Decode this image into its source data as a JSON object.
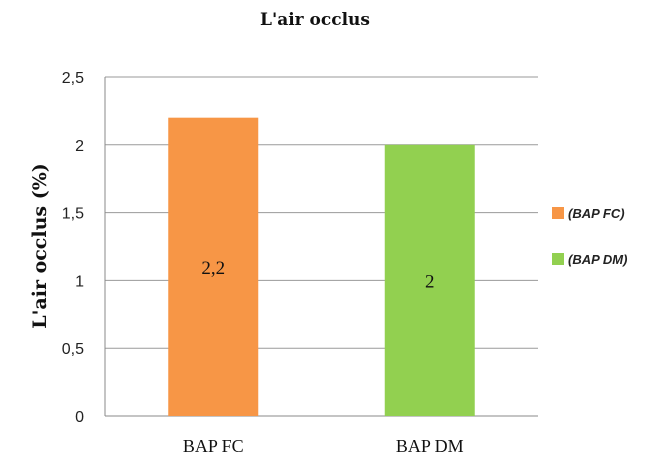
{
  "chart_data": {
    "type": "bar",
    "title": "L'air occlus",
    "ylabel": "L'air occlus (%)",
    "xlabel": "",
    "categories": [
      "BAP FC",
      "BAP DM"
    ],
    "values": [
      2.2,
      2
    ],
    "data_labels": [
      "2,2",
      "2"
    ],
    "ylim": [
      0,
      2.5
    ],
    "yticks": [
      0,
      0.5,
      1,
      1.5,
      2,
      2.5
    ],
    "ytick_labels": [
      "0",
      "0,5",
      "1",
      "1,5",
      "2",
      "2,5"
    ],
    "grid": true,
    "legend_position": "right",
    "legend": [
      {
        "label": "(BAP FC)",
        "color": "#F79646"
      },
      {
        "label": "(BAP DM)",
        "color": "#92D050"
      }
    ],
    "colors": [
      "#F79646",
      "#92D050"
    ]
  }
}
